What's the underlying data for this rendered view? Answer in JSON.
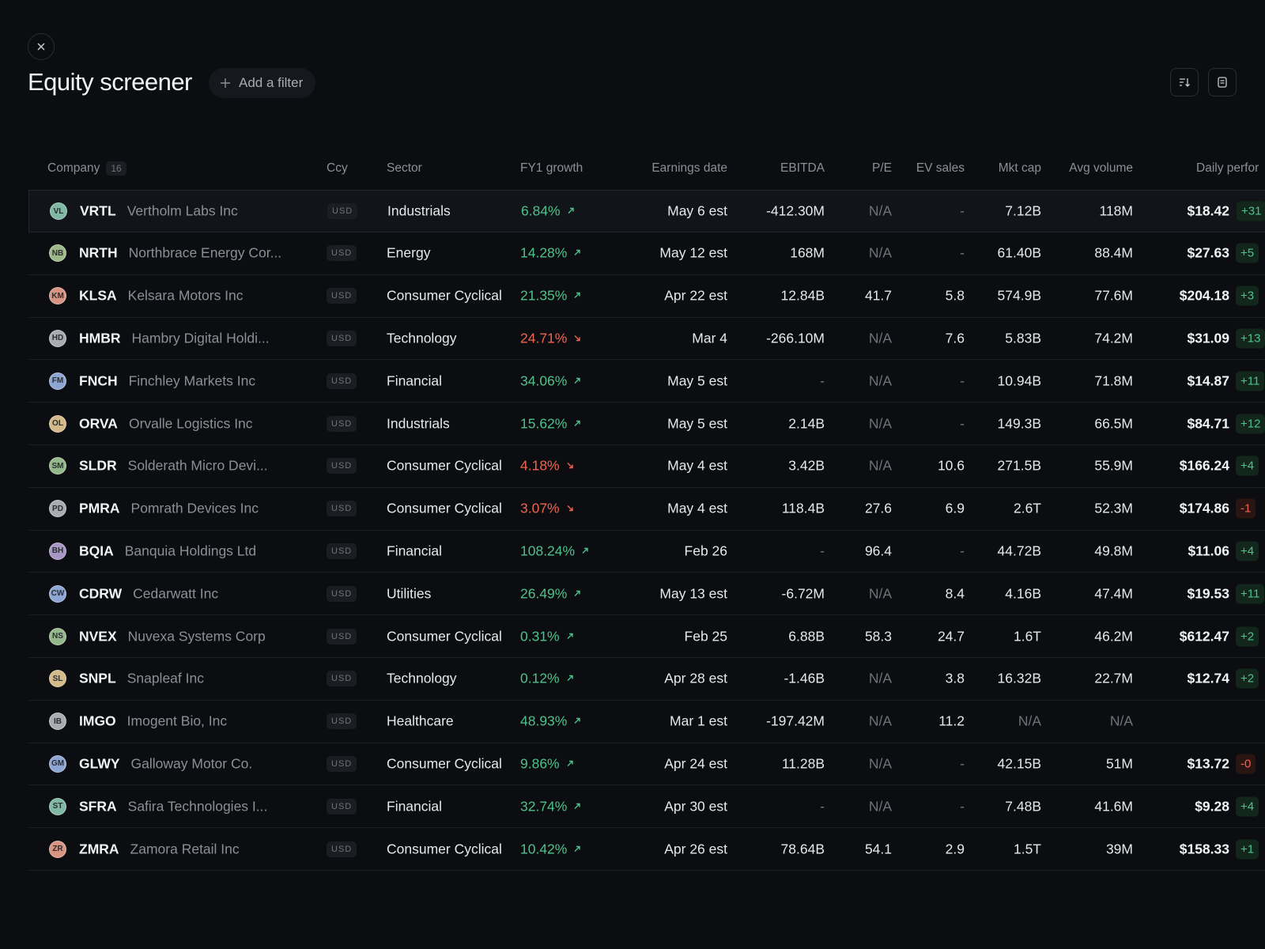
{
  "header": {
    "title": "Equity screener",
    "add_filter": "Add a filter"
  },
  "table": {
    "columns": [
      "Company",
      "Ccy",
      "Sector",
      "FY1 growth",
      "Earnings date",
      "EBITDA",
      "P/E",
      "EV sales",
      "Mkt cap",
      "Avg volume",
      "Daily perfor"
    ],
    "company_count": "16",
    "rows": [
      {
        "initials": "VL",
        "avatar_color": "#7fb8a4",
        "ticker": "VRTL",
        "name": "Vertholm Labs Inc",
        "ccy": "USD",
        "sector": "Industrials",
        "growth": "6.84%",
        "trend": "up",
        "earnings": "May 6 est",
        "ebitda": "-412.30M",
        "pe": "N/A",
        "ev_sales": "-",
        "mkt_cap": "7.12B",
        "avg_volume": "118M",
        "price": "$18.42",
        "perf": "+31"
      },
      {
        "initials": "NB",
        "avatar_color": "#9fb88a",
        "ticker": "NRTH",
        "name": "Northbrace Energy Cor...",
        "ccy": "USD",
        "sector": "Energy",
        "growth": "14.28%",
        "trend": "up",
        "earnings": "May 12 est",
        "ebitda": "168M",
        "pe": "N/A",
        "ev_sales": "-",
        "mkt_cap": "61.40B",
        "avg_volume": "88.4M",
        "price": "$27.63",
        "perf": "+5"
      },
      {
        "initials": "KM",
        "avatar_color": "#d89482",
        "ticker": "KLSA",
        "name": "Kelsara Motors Inc",
        "ccy": "USD",
        "sector": "Consumer Cyclical",
        "growth": "21.35%",
        "trend": "up",
        "earnings": "Apr 22 est",
        "ebitda": "12.84B",
        "pe": "41.7",
        "ev_sales": "5.8",
        "mkt_cap": "574.9B",
        "avg_volume": "77.6M",
        "price": "$204.18",
        "perf": "+3"
      },
      {
        "initials": "HD",
        "avatar_color": "#a9adb3",
        "ticker": "HMBR",
        "name": "Hambry Digital Holdi...",
        "ccy": "USD",
        "sector": "Technology",
        "growth": "24.71%",
        "trend": "down",
        "earnings": "Mar 4",
        "ebitda": "-266.10M",
        "pe": "N/A",
        "ev_sales": "7.6",
        "mkt_cap": "5.83B",
        "avg_volume": "74.2M",
        "price": "$31.09",
        "perf": "+13"
      },
      {
        "initials": "FM",
        "avatar_color": "#8ea6d4",
        "ticker": "FNCH",
        "name": "Finchley Markets Inc",
        "ccy": "USD",
        "sector": "Financial",
        "growth": "34.06%",
        "trend": "up",
        "earnings": "May 5 est",
        "ebitda": "-",
        "pe": "N/A",
        "ev_sales": "-",
        "mkt_cap": "10.94B",
        "avg_volume": "71.8M",
        "price": "$14.87",
        "perf": "+11"
      },
      {
        "initials": "OL",
        "avatar_color": "#d4b98a",
        "ticker": "ORVA",
        "name": "Orvalle Logistics Inc",
        "ccy": "USD",
        "sector": "Industrials",
        "growth": "15.62%",
        "trend": "up",
        "earnings": "May 5 est",
        "ebitda": "2.14B",
        "pe": "N/A",
        "ev_sales": "-",
        "mkt_cap": "149.3B",
        "avg_volume": "66.5M",
        "price": "$84.71",
        "perf": "+12"
      },
      {
        "initials": "SM",
        "avatar_color": "#94b88c",
        "ticker": "SLDR",
        "name": "Solderath Micro Devi...",
        "ccy": "USD",
        "sector": "Consumer Cyclical",
        "growth": "4.18%",
        "trend": "down",
        "earnings": "May 4 est",
        "ebitda": "3.42B",
        "pe": "N/A",
        "ev_sales": "10.6",
        "mkt_cap": "271.5B",
        "avg_volume": "55.9M",
        "price": "$166.24",
        "perf": "+4"
      },
      {
        "initials": "PD",
        "avatar_color": "#a9adb3",
        "ticker": "PMRA",
        "name": "Pomrath Devices Inc",
        "ccy": "USD",
        "sector": "Consumer Cyclical",
        "growth": "3.07%",
        "trend": "down",
        "earnings": "May 4 est",
        "ebitda": "118.4B",
        "pe": "27.6",
        "ev_sales": "6.9",
        "mkt_cap": "2.6T",
        "avg_volume": "52.3M",
        "price": "$174.86",
        "perf": "-1"
      },
      {
        "initials": "BH",
        "avatar_color": "#a896c4",
        "ticker": "BQIA",
        "name": "Banquia Holdings Ltd",
        "ccy": "USD",
        "sector": "Financial",
        "growth": "108.24%",
        "trend": "up",
        "earnings": "Feb 26",
        "ebitda": "-",
        "pe": "96.4",
        "ev_sales": "-",
        "mkt_cap": "44.72B",
        "avg_volume": "49.8M",
        "price": "$11.06",
        "perf": "+4"
      },
      {
        "initials": "CW",
        "avatar_color": "#8ea6d4",
        "ticker": "CDRW",
        "name": "Cedarwatt Inc",
        "ccy": "USD",
        "sector": "Utilities",
        "growth": "26.49%",
        "trend": "up",
        "earnings": "May 13 est",
        "ebitda": "-6.72M",
        "pe": "N/A",
        "ev_sales": "8.4",
        "mkt_cap": "4.16B",
        "avg_volume": "47.4M",
        "price": "$19.53",
        "perf": "+11"
      },
      {
        "initials": "NS",
        "avatar_color": "#94b88c",
        "ticker": "NVEX",
        "name": "Nuvexa Systems Corp",
        "ccy": "USD",
        "sector": "Consumer Cyclical",
        "growth": "0.31%",
        "trend": "up",
        "earnings": "Feb 25",
        "ebitda": "6.88B",
        "pe": "58.3",
        "ev_sales": "24.7",
        "mkt_cap": "1.6T",
        "avg_volume": "46.2M",
        "price": "$612.47",
        "perf": "+2"
      },
      {
        "initials": "SL",
        "avatar_color": "#d4b98a",
        "ticker": "SNPL",
        "name": "Snapleaf Inc",
        "ccy": "USD",
        "sector": "Technology",
        "growth": "0.12%",
        "trend": "up",
        "earnings": "Apr 28 est",
        "ebitda": "-1.46B",
        "pe": "N/A",
        "ev_sales": "3.8",
        "mkt_cap": "16.32B",
        "avg_volume": "22.7M",
        "price": "$12.74",
        "perf": "+2"
      },
      {
        "initials": "IB",
        "avatar_color": "#a9adb3",
        "ticker": "IMGO",
        "name": "Imogent Bio, Inc",
        "ccy": "USD",
        "sector": "Healthcare",
        "growth": "48.93%",
        "trend": "up",
        "earnings": "Mar 1 est",
        "ebitda": "-197.42M",
        "pe": "N/A",
        "ev_sales": "11.2",
        "mkt_cap": "N/A",
        "avg_volume": "N/A",
        "price": null,
        "perf": null
      },
      {
        "initials": "GM",
        "avatar_color": "#8ea6d4",
        "ticker": "GLWY",
        "name": "Galloway Motor Co.",
        "ccy": "USD",
        "sector": "Consumer Cyclical",
        "growth": "9.86%",
        "trend": "up",
        "earnings": "Apr 24 est",
        "ebitda": "11.28B",
        "pe": "N/A",
        "ev_sales": "-",
        "mkt_cap": "42.15B",
        "avg_volume": "51M",
        "price": "$13.72",
        "perf": "-0"
      },
      {
        "initials": "ST",
        "avatar_color": "#7fb8a4",
        "ticker": "SFRA",
        "name": "Safira Technologies I...",
        "ccy": "USD",
        "sector": "Financial",
        "growth": "32.74%",
        "trend": "up",
        "earnings": "Apr 30 est",
        "ebitda": "-",
        "pe": "N/A",
        "ev_sales": "-",
        "mkt_cap": "7.48B",
        "avg_volume": "41.6M",
        "price": "$9.28",
        "perf": "+4"
      },
      {
        "initials": "ZR",
        "avatar_color": "#d89482",
        "ticker": "ZMRA",
        "name": "Zamora Retail Inc",
        "ccy": "USD",
        "sector": "Consumer Cyclical",
        "growth": "10.42%",
        "trend": "up",
        "earnings": "Apr 26 est",
        "ebitda": "78.64B",
        "pe": "54.1",
        "ev_sales": "2.9",
        "mkt_cap": "1.5T",
        "avg_volume": "39M",
        "price": "$158.33",
        "perf": "+1"
      }
    ]
  }
}
